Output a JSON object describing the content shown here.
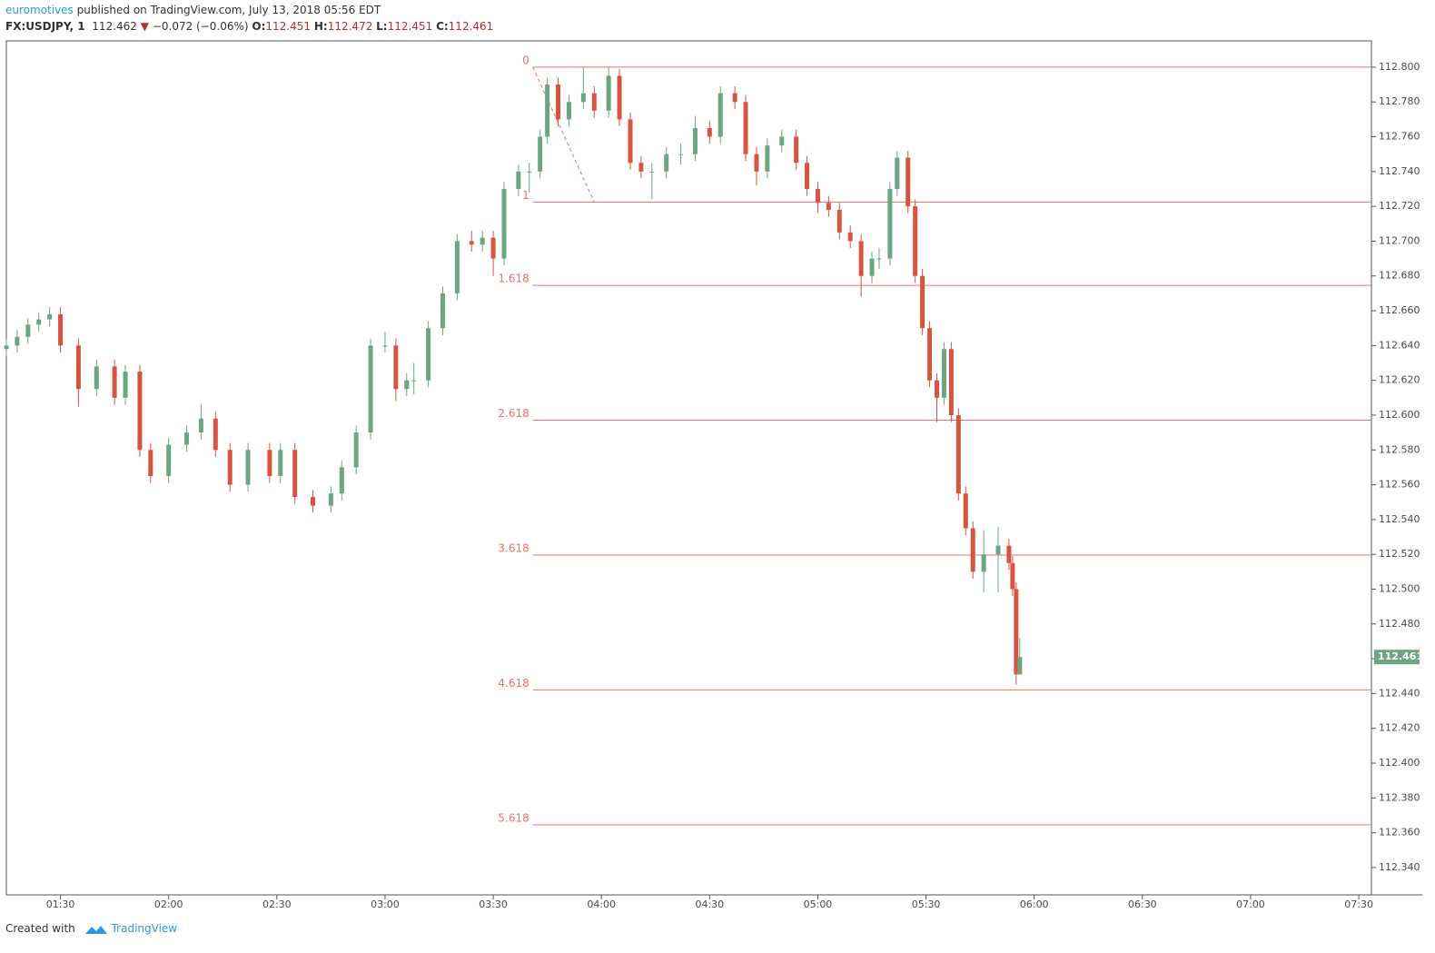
{
  "header": {
    "author": "euromotives",
    "published": "published on TradingView.com, July 13, 2018 05:56 EDT",
    "symbol": "FX:USDJPY, 1",
    "price": "112.462",
    "change": "−0.072 (−0.06%)",
    "open_label": "O:",
    "open": "112.451",
    "high_label": "H:",
    "high": "112.472",
    "low_label": "L:",
    "low": "112.451",
    "close_label": "C:",
    "close": "112.461"
  },
  "footer": {
    "created": "Created with",
    "brand": "TradingView"
  },
  "chart_data": {
    "type": "candlestick",
    "x": [
      75,
      78,
      81,
      84,
      87,
      90,
      95,
      100,
      105,
      108,
      112,
      115,
      120,
      125,
      129,
      133,
      137,
      142,
      148,
      151,
      155,
      160,
      165,
      168,
      172,
      176,
      180,
      183,
      186,
      188,
      192,
      196,
      200,
      204,
      207,
      210,
      213,
      217,
      220,
      223,
      225,
      228,
      231,
      235,
      238,
      242,
      245,
      248,
      251,
      254,
      258,
      262,
      266,
      270,
      273,
      277,
      280,
      283,
      286,
      290,
      294,
      297,
      300,
      303,
      306,
      309,
      312,
      315,
      317,
      320,
      322,
      325,
      327,
      329,
      331,
      333,
      335,
      337,
      339,
      341,
      343,
      346,
      350,
      353,
      354,
      355,
      356
    ],
    "open": [
      112.638,
      112.64,
      112.645,
      112.652,
      112.655,
      112.658,
      112.64,
      112.615,
      112.628,
      112.61,
      112.625,
      112.58,
      112.565,
      112.583,
      112.59,
      112.598,
      112.58,
      112.56,
      112.58,
      112.565,
      112.58,
      112.553,
      112.548,
      112.555,
      112.57,
      112.59,
      112.64,
      112.64,
      112.615,
      112.62,
      112.62,
      112.65,
      112.67,
      112.7,
      112.698,
      112.702,
      112.69,
      112.73,
      112.74,
      112.74,
      112.76,
      112.79,
      112.77,
      112.78,
      112.785,
      112.775,
      112.795,
      112.77,
      112.745,
      112.74,
      112.74,
      112.75,
      112.75,
      112.765,
      112.76,
      112.785,
      112.78,
      112.75,
      112.74,
      112.755,
      112.76,
      112.745,
      112.73,
      112.722,
      112.718,
      112.705,
      112.7,
      112.68,
      112.69,
      112.69,
      112.73,
      112.748,
      112.72,
      112.68,
      112.65,
      112.62,
      112.61,
      112.638,
      112.6,
      112.555,
      112.535,
      112.51,
      112.52,
      112.525,
      112.515,
      112.5,
      112.451
    ],
    "high": [
      112.644,
      112.649,
      112.656,
      112.659,
      112.662,
      112.662,
      112.644,
      112.632,
      112.632,
      112.629,
      112.629,
      112.584,
      112.587,
      112.594,
      112.606,
      112.602,
      112.584,
      112.584,
      112.584,
      112.584,
      112.584,
      112.557,
      112.559,
      112.574,
      112.594,
      112.644,
      112.648,
      112.644,
      112.624,
      112.63,
      112.654,
      112.674,
      112.704,
      112.706,
      112.706,
      112.706,
      112.734,
      112.744,
      112.745,
      112.764,
      112.794,
      112.794,
      112.784,
      112.8,
      112.789,
      112.8,
      112.799,
      112.774,
      112.749,
      112.745,
      112.754,
      112.756,
      112.772,
      112.769,
      112.789,
      112.789,
      112.784,
      112.754,
      112.759,
      112.764,
      112.764,
      112.749,
      112.734,
      112.726,
      112.722,
      112.709,
      112.704,
      112.694,
      112.696,
      112.734,
      112.752,
      112.752,
      112.724,
      112.684,
      112.654,
      112.624,
      112.642,
      112.642,
      112.604,
      112.559,
      112.539,
      112.534,
      112.536,
      112.529,
      112.519,
      112.504,
      112.472
    ],
    "low": [
      112.634,
      112.636,
      112.641,
      112.648,
      112.651,
      112.636,
      112.605,
      112.611,
      112.606,
      112.606,
      112.576,
      112.561,
      112.561,
      112.579,
      112.586,
      112.576,
      112.556,
      112.556,
      112.561,
      112.561,
      112.549,
      112.544,
      112.544,
      112.551,
      112.566,
      112.586,
      112.636,
      112.608,
      112.611,
      112.612,
      112.616,
      112.646,
      112.666,
      112.694,
      112.694,
      112.68,
      112.686,
      112.726,
      112.728,
      112.736,
      112.756,
      112.766,
      112.766,
      112.776,
      112.771,
      112.771,
      112.766,
      112.741,
      112.736,
      112.724,
      112.736,
      112.744,
      112.746,
      112.756,
      112.756,
      112.776,
      112.746,
      112.732,
      112.736,
      112.751,
      112.741,
      112.726,
      112.716,
      112.714,
      112.701,
      112.696,
      112.668,
      112.676,
      112.684,
      112.686,
      112.726,
      112.716,
      112.676,
      112.646,
      112.616,
      112.596,
      112.606,
      112.596,
      112.551,
      112.531,
      112.506,
      112.498,
      112.498,
      112.511,
      112.496,
      112.445,
      112.451
    ],
    "close": [
      112.64,
      112.645,
      112.652,
      112.655,
      112.658,
      112.64,
      112.615,
      112.628,
      112.61,
      112.625,
      112.58,
      112.565,
      112.583,
      112.59,
      112.598,
      112.58,
      112.56,
      112.58,
      112.565,
      112.58,
      112.553,
      112.548,
      112.555,
      112.57,
      112.59,
      112.64,
      112.64,
      112.615,
      112.62,
      112.62,
      112.65,
      112.67,
      112.7,
      112.698,
      112.702,
      112.69,
      112.73,
      112.74,
      112.74,
      112.76,
      112.79,
      112.77,
      112.78,
      112.785,
      112.775,
      112.795,
      112.77,
      112.745,
      112.74,
      112.74,
      112.75,
      112.75,
      112.765,
      112.76,
      112.785,
      112.78,
      112.75,
      112.74,
      112.755,
      112.76,
      112.745,
      112.73,
      112.722,
      112.718,
      112.705,
      112.7,
      112.68,
      112.69,
      112.69,
      112.73,
      112.748,
      112.72,
      112.68,
      112.65,
      112.62,
      112.61,
      112.638,
      112.6,
      112.555,
      112.535,
      112.51,
      112.52,
      112.525,
      112.515,
      112.5,
      112.451,
      112.461
    ],
    "up_color": "#6ba583",
    "down_color": "#d75442",
    "xlim": [
      75,
      453.5
    ],
    "ylim": [
      112.3243,
      112.8151
    ],
    "xticks": [
      {
        "value": 90,
        "label": "01:30"
      },
      {
        "value": 120,
        "label": "02:00"
      },
      {
        "value": 150,
        "label": "02:30"
      },
      {
        "value": 180,
        "label": "03:00"
      },
      {
        "value": 210,
        "label": "03:30"
      },
      {
        "value": 240,
        "label": "04:00"
      },
      {
        "value": 270,
        "label": "04:30"
      },
      {
        "value": 300,
        "label": "05:00"
      },
      {
        "value": 330,
        "label": "05:30"
      },
      {
        "value": 360,
        "label": "06:00"
      },
      {
        "value": 390,
        "label": "06:30"
      },
      {
        "value": 420,
        "label": "07:00"
      },
      {
        "value": 450,
        "label": "07:30"
      }
    ],
    "yticks": [
      {
        "value": 112.34,
        "label": "112.340"
      },
      {
        "value": 112.36,
        "label": "112.360"
      },
      {
        "value": 112.38,
        "label": "112.380"
      },
      {
        "value": 112.4,
        "label": "112.400"
      },
      {
        "value": 112.42,
        "label": "112.420"
      },
      {
        "value": 112.44,
        "label": "112.440"
      },
      {
        "value": 112.46,
        "label": "112.460"
      },
      {
        "value": 112.48,
        "label": "112.480"
      },
      {
        "value": 112.5,
        "label": "112.500"
      },
      {
        "value": 112.52,
        "label": "112.520"
      },
      {
        "value": 112.54,
        "label": "112.540"
      },
      {
        "value": 112.56,
        "label": "112.560"
      },
      {
        "value": 112.58,
        "label": "112.580"
      },
      {
        "value": 112.6,
        "label": "112.600"
      },
      {
        "value": 112.62,
        "label": "112.620"
      },
      {
        "value": 112.64,
        "label": "112.640"
      },
      {
        "value": 112.66,
        "label": "112.660"
      },
      {
        "value": 112.68,
        "label": "112.680"
      },
      {
        "value": 112.7,
        "label": "112.700"
      },
      {
        "value": 112.72,
        "label": "112.720"
      },
      {
        "value": 112.74,
        "label": "112.740"
      },
      {
        "value": 112.76,
        "label": "112.760"
      },
      {
        "value": 112.78,
        "label": "112.780"
      },
      {
        "value": 112.8,
        "label": "112.800"
      }
    ],
    "last_price": 112.461,
    "last_price_color": "#6ba583",
    "fib_levels": [
      0,
      1,
      1.618,
      2.618,
      3.618,
      4.618,
      5.618
    ],
    "fib_prices": [
      112.8,
      112.7225,
      112.6746,
      112.5971,
      112.5196,
      112.4421,
      112.3646
    ],
    "fib_color": "#ef6f6f",
    "trend_line": {
      "x": [
        221,
        238
      ],
      "y": [
        112.8,
        112.7225
      ]
    }
  }
}
